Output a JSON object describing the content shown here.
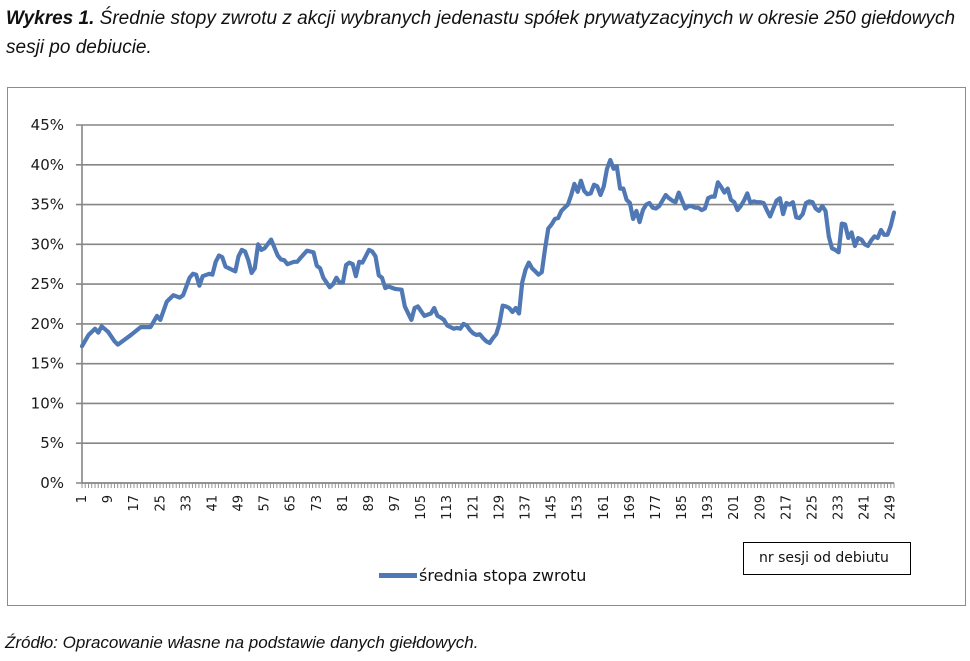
{
  "figure": {
    "label": "Wykres 1.",
    "title": "Średnie stopy zwrotu z akcji wybranych jedenastu spółek prywatyzacyjnych w okresie 250 giełdowych sesji po debiucie.",
    "source": "Źródło: Opracowanie własne na podstawie danych giełdowych."
  },
  "chart_data": {
    "type": "line",
    "title": "Średnie stopy zwrotu z akcji wybranych jedenastu spółek prywatyzacyjnych w okresie 250 giełdowych sesji po debiucie.",
    "xlabel": "nr sesji od debiutu",
    "ylabel": "",
    "ylim": [
      0,
      0.45
    ],
    "xlim": [
      1,
      250
    ],
    "y_ticks": [
      "0%",
      "5%",
      "10%",
      "15%",
      "20%",
      "25%",
      "30%",
      "35%",
      "40%",
      "45%"
    ],
    "x_ticks": [
      "1",
      "9",
      "17",
      "25",
      "33",
      "41",
      "49",
      "57",
      "65",
      "73",
      "81",
      "89",
      "97",
      "105",
      "113",
      "121",
      "129",
      "137",
      "145",
      "153",
      "161",
      "169",
      "177",
      "185",
      "193",
      "201",
      "209",
      "217",
      "225",
      "233",
      "241",
      "249"
    ],
    "grid": "horizontal",
    "legend_position": "bottom",
    "color": "#4f78b5",
    "series": [
      {
        "name": "średnia stopa zwrotu",
        "points": [
          [
            1,
            17.2
          ],
          [
            3,
            18.6
          ],
          [
            5,
            19.4
          ],
          [
            6,
            18.9
          ],
          [
            7,
            19.7
          ],
          [
            9,
            19.0
          ],
          [
            11,
            17.8
          ],
          [
            12,
            17.4
          ],
          [
            14,
            18.0
          ],
          [
            16,
            18.6
          ],
          [
            19,
            19.6
          ],
          [
            22,
            19.6
          ],
          [
            24,
            21.0
          ],
          [
            25,
            20.5
          ],
          [
            27,
            22.8
          ],
          [
            29,
            23.6
          ],
          [
            31,
            23.3
          ],
          [
            32,
            23.6
          ],
          [
            34,
            25.8
          ],
          [
            35,
            26.3
          ],
          [
            36,
            26.2
          ],
          [
            37,
            24.8
          ],
          [
            38,
            26.0
          ],
          [
            40,
            26.3
          ],
          [
            41,
            26.2
          ],
          [
            42,
            27.8
          ],
          [
            43,
            28.6
          ],
          [
            44,
            28.4
          ],
          [
            45,
            27.2
          ],
          [
            47,
            26.8
          ],
          [
            48,
            26.6
          ],
          [
            49,
            28.5
          ],
          [
            50,
            29.3
          ],
          [
            51,
            29.1
          ],
          [
            52,
            28.0
          ],
          [
            53,
            26.4
          ],
          [
            54,
            27.0
          ],
          [
            55,
            30.0
          ],
          [
            56,
            29.3
          ],
          [
            57,
            29.5
          ],
          [
            59,
            30.6
          ],
          [
            60,
            29.6
          ],
          [
            61,
            28.6
          ],
          [
            62,
            28.1
          ],
          [
            63,
            28.0
          ],
          [
            64,
            27.5
          ],
          [
            66,
            27.8
          ],
          [
            67,
            27.8
          ],
          [
            68,
            28.3
          ],
          [
            70,
            29.2
          ],
          [
            71,
            29.1
          ],
          [
            72,
            29.0
          ],
          [
            73,
            27.3
          ],
          [
            74,
            27.0
          ],
          [
            75,
            25.8
          ],
          [
            77,
            24.6
          ],
          [
            78,
            25.0
          ],
          [
            79,
            25.8
          ],
          [
            80,
            25.2
          ],
          [
            81,
            25.2
          ],
          [
            82,
            27.4
          ],
          [
            83,
            27.7
          ],
          [
            84,
            27.5
          ],
          [
            85,
            26.0
          ],
          [
            86,
            27.8
          ],
          [
            87,
            27.7
          ],
          [
            88,
            28.5
          ],
          [
            89,
            29.3
          ],
          [
            90,
            29.1
          ],
          [
            91,
            28.5
          ],
          [
            92,
            26.1
          ],
          [
            93,
            25.8
          ],
          [
            94,
            24.5
          ],
          [
            95,
            24.7
          ],
          [
            97,
            24.4
          ],
          [
            99,
            24.3
          ],
          [
            100,
            22.2
          ],
          [
            102,
            20.5
          ],
          [
            103,
            22.0
          ],
          [
            104,
            22.2
          ],
          [
            105,
            21.6
          ],
          [
            106,
            21.0
          ],
          [
            108,
            21.3
          ],
          [
            109,
            22.0
          ],
          [
            110,
            21.0
          ],
          [
            111,
            20.8
          ],
          [
            112,
            20.5
          ],
          [
            113,
            19.8
          ],
          [
            114,
            19.6
          ],
          [
            115,
            19.4
          ],
          [
            116,
            19.5
          ],
          [
            117,
            19.4
          ],
          [
            118,
            20.0
          ],
          [
            119,
            19.8
          ],
          [
            120,
            19.2
          ],
          [
            121,
            18.8
          ],
          [
            122,
            18.6
          ],
          [
            123,
            18.7
          ],
          [
            124,
            18.2
          ],
          [
            125,
            17.8
          ],
          [
            126,
            17.6
          ],
          [
            127,
            18.2
          ],
          [
            128,
            18.7
          ],
          [
            129,
            20.0
          ],
          [
            130,
            22.3
          ],
          [
            131,
            22.2
          ],
          [
            132,
            22.0
          ],
          [
            133,
            21.5
          ],
          [
            134,
            22.0
          ],
          [
            135,
            21.3
          ],
          [
            136,
            25.2
          ],
          [
            137,
            26.8
          ],
          [
            138,
            27.7
          ],
          [
            139,
            27.0
          ],
          [
            140,
            26.6
          ],
          [
            141,
            26.2
          ],
          [
            142,
            26.5
          ],
          [
            143,
            29.5
          ],
          [
            144,
            32.0
          ],
          [
            145,
            32.5
          ],
          [
            146,
            33.2
          ],
          [
            147,
            33.3
          ],
          [
            148,
            34.2
          ],
          [
            149,
            34.6
          ],
          [
            150,
            35.0
          ],
          [
            151,
            36.2
          ],
          [
            152,
            37.6
          ],
          [
            153,
            36.6
          ],
          [
            154,
            38.0
          ],
          [
            155,
            36.7
          ],
          [
            156,
            36.3
          ],
          [
            157,
            36.4
          ],
          [
            158,
            37.5
          ],
          [
            159,
            37.3
          ],
          [
            160,
            36.2
          ],
          [
            161,
            37.3
          ],
          [
            162,
            39.5
          ],
          [
            163,
            40.6
          ],
          [
            164,
            39.5
          ],
          [
            165,
            39.8
          ],
          [
            166,
            37.0
          ],
          [
            167,
            37.0
          ],
          [
            168,
            35.6
          ],
          [
            169,
            35.2
          ],
          [
            170,
            33.2
          ],
          [
            171,
            34.2
          ],
          [
            172,
            32.8
          ],
          [
            173,
            34.3
          ],
          [
            174,
            35.0
          ],
          [
            175,
            35.2
          ],
          [
            176,
            34.6
          ],
          [
            177,
            34.5
          ],
          [
            178,
            34.8
          ],
          [
            179,
            35.5
          ],
          [
            180,
            36.2
          ],
          [
            181,
            35.8
          ],
          [
            182,
            35.5
          ],
          [
            183,
            35.3
          ],
          [
            184,
            36.5
          ],
          [
            185,
            35.5
          ],
          [
            186,
            34.5
          ],
          [
            187,
            34.8
          ],
          [
            188,
            34.8
          ],
          [
            189,
            34.6
          ],
          [
            190,
            34.6
          ],
          [
            191,
            34.3
          ],
          [
            192,
            34.5
          ],
          [
            193,
            35.8
          ],
          [
            194,
            36.0
          ],
          [
            195,
            36.0
          ],
          [
            196,
            37.8
          ],
          [
            197,
            37.2
          ],
          [
            198,
            36.5
          ],
          [
            199,
            37.0
          ],
          [
            200,
            35.6
          ],
          [
            201,
            35.3
          ],
          [
            202,
            34.3
          ],
          [
            203,
            34.8
          ],
          [
            204,
            35.5
          ],
          [
            205,
            36.4
          ],
          [
            206,
            35.2
          ],
          [
            207,
            35.4
          ],
          [
            208,
            35.3
          ],
          [
            209,
            35.3
          ],
          [
            210,
            35.2
          ],
          [
            211,
            34.3
          ],
          [
            212,
            33.5
          ],
          [
            213,
            34.5
          ],
          [
            214,
            35.5
          ],
          [
            215,
            35.8
          ],
          [
            216,
            33.8
          ],
          [
            217,
            35.2
          ],
          [
            218,
            35.0
          ],
          [
            219,
            35.3
          ],
          [
            220,
            33.4
          ],
          [
            221,
            33.3
          ],
          [
            222,
            33.8
          ],
          [
            223,
            35.2
          ],
          [
            224,
            35.4
          ],
          [
            225,
            35.3
          ],
          [
            226,
            34.5
          ],
          [
            227,
            34.2
          ],
          [
            228,
            34.8
          ],
          [
            229,
            34.2
          ],
          [
            230,
            31.0
          ],
          [
            231,
            29.5
          ],
          [
            232,
            29.3
          ],
          [
            233,
            29.0
          ],
          [
            234,
            32.6
          ],
          [
            235,
            32.5
          ],
          [
            236,
            30.8
          ],
          [
            237,
            31.5
          ],
          [
            238,
            29.8
          ],
          [
            239,
            30.8
          ],
          [
            240,
            30.6
          ],
          [
            241,
            30.0
          ],
          [
            242,
            29.8
          ],
          [
            243,
            30.5
          ],
          [
            244,
            31.0
          ],
          [
            245,
            30.8
          ],
          [
            246,
            31.8
          ],
          [
            247,
            31.2
          ],
          [
            248,
            31.2
          ],
          [
            249,
            32.3
          ],
          [
            250,
            34.0
          ]
        ]
      }
    ]
  },
  "legend": {
    "items": [
      {
        "label": "średnia stopa zwrotu",
        "color": "#4f78b5"
      }
    ]
  },
  "axis_title_box": {
    "label": "nr sesji od debiutu"
  }
}
